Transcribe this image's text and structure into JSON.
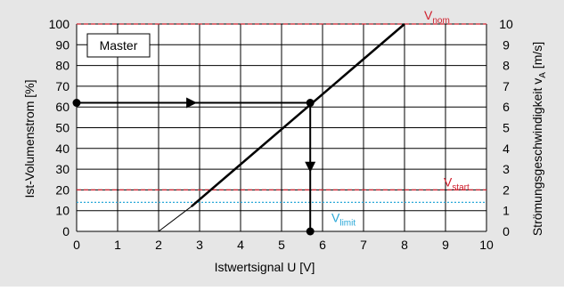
{
  "colors": {
    "background": "#e6e6e6",
    "plot_background": "#ffffff",
    "grid": "#000000",
    "main_line": "#000000",
    "nominal_line": "#d0202e",
    "limit_line": "#2aa8d8"
  },
  "chart_data": {
    "type": "line",
    "legend_box": "Master",
    "xlabel": "Istwertsignal U [V]",
    "ylabel_left": "Ist-Volumenstrom [%]",
    "ylabel_right": {
      "prefix": "Strömungsgeschwindigkeit v",
      "subscript": "A",
      "suffix": " [m/s]"
    },
    "xlim": [
      0,
      10
    ],
    "ylim_left": [
      0,
      100
    ],
    "ylim_right": [
      0,
      10
    ],
    "x_ticks": [
      "0",
      "1",
      "2",
      "3",
      "4",
      "5",
      "6",
      "7",
      "8",
      "9",
      "10"
    ],
    "y_ticks_left": [
      "0",
      "10",
      "20",
      "30",
      "40",
      "50",
      "60",
      "70",
      "80",
      "90",
      "100"
    ],
    "y_ticks_right": [
      "0",
      "1",
      "2",
      "3",
      "4",
      "5",
      "6",
      "7",
      "8",
      "9",
      "10"
    ],
    "grid": true,
    "series": [
      {
        "style": "thin",
        "x": [
          2,
          2.8
        ],
        "y": [
          0,
          12
        ]
      },
      {
        "style": "thick",
        "x": [
          2.8,
          8
        ],
        "y": [
          12,
          100
        ]
      }
    ],
    "reference_lines": [
      {
        "label_main": "V",
        "label_sub": "nom",
        "y": 100,
        "style": "dashed",
        "color": "#d0202e"
      },
      {
        "label_main": "V",
        "label_sub": "start",
        "y": 20,
        "style": "dashed",
        "color": "#d0202e"
      },
      {
        "label_main": "V",
        "label_sub": "limit",
        "y": 14,
        "style": "dotted",
        "color": "#2aa8d8"
      }
    ],
    "example_reading": {
      "start": {
        "x": 0,
        "y": 62
      },
      "intersection": {
        "x": 5.7,
        "y": 62
      },
      "end": {
        "x": 5.7,
        "y": 0
      }
    }
  }
}
